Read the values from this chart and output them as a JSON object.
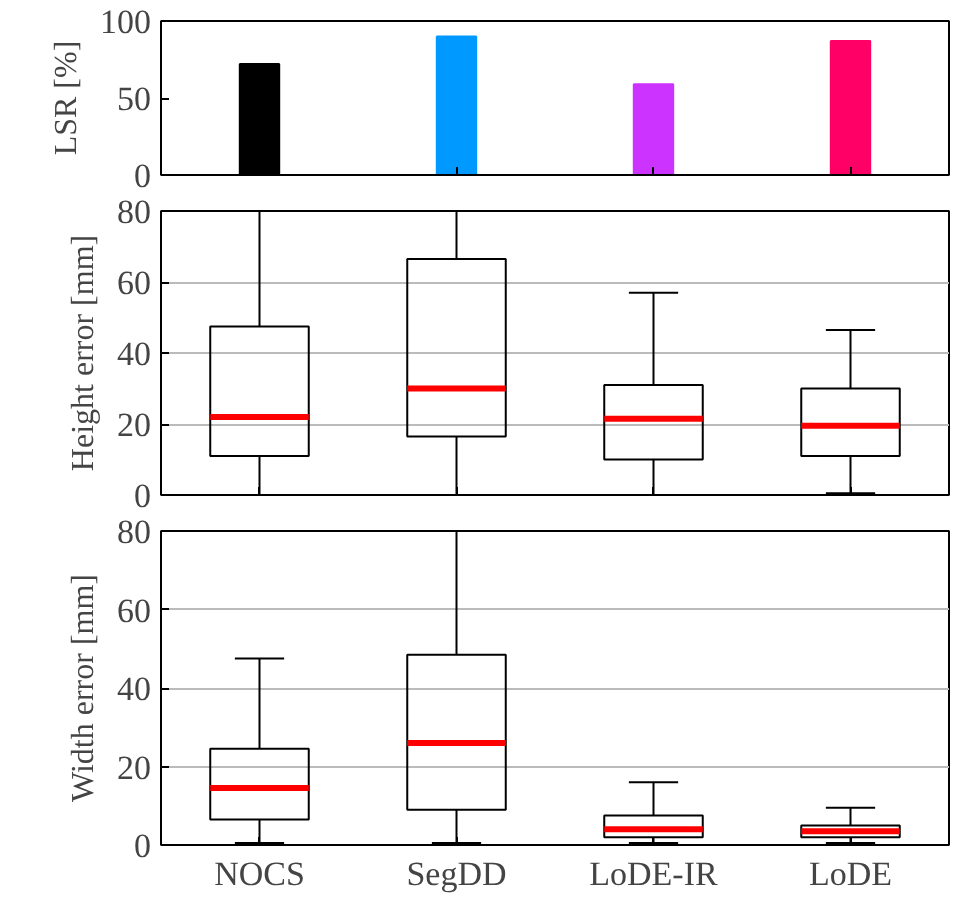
{
  "chart_data": [
    {
      "type": "bar",
      "ylabel": "LSR [%]",
      "categories": [
        null,
        null,
        null,
        null
      ],
      "values": [
        72,
        90,
        59,
        87
      ],
      "colors": [
        "#000000",
        "#0099ff",
        "#cc33ff",
        "#ff0066"
      ],
      "ylim": [
        0,
        100
      ],
      "yticks": [
        0,
        50,
        100
      ],
      "tick_labels": "y",
      "grid": false
    },
    {
      "type": "box",
      "ylabel": "Height error [mm]",
      "categories": [
        null,
        null,
        null,
        null
      ],
      "ylim": [
        0,
        80
      ],
      "yticks": [
        0,
        20,
        40,
        60,
        80
      ],
      "tick_labels": "y",
      "grid": "y",
      "series": [
        {
          "color": "#000000",
          "boxes": [
            {
              "low": 0,
              "q1": 11,
              "median": 22,
              "q3": 47.5,
              "high": 80
            },
            {
              "low": 0,
              "q1": 16.5,
              "median": 30,
              "q3": 66.5,
              "high": 80
            },
            {
              "low": 0,
              "q1": 10,
              "median": 21.5,
              "q3": 31,
              "high": 57
            },
            {
              "low": 0.5,
              "q1": 11,
              "median": 19.5,
              "q3": 30,
              "high": 46.5
            }
          ]
        }
      ]
    },
    {
      "type": "box",
      "ylabel": "Width error [mm]",
      "categories": [
        "NOCS",
        "SegDD",
        "LoDE-IR",
        "LoDE"
      ],
      "ylim": [
        0,
        80
      ],
      "yticks": [
        0,
        20,
        40,
        60,
        80
      ],
      "grid": "y",
      "series": [
        {
          "color": "#000000",
          "boxes": [
            {
              "low": 0.5,
              "q1": 6.5,
              "median": 14.5,
              "q3": 24.5,
              "high": 47.5
            },
            {
              "low": 0.5,
              "q1": 9,
              "median": 26,
              "q3": 48.5,
              "high": 80
            },
            {
              "low": 0.5,
              "q1": 2,
              "median": 4,
              "q3": 7.5,
              "high": 16
            },
            {
              "low": 0.5,
              "q1": 2,
              "median": 3.5,
              "q3": 5,
              "high": 9.5
            }
          ]
        }
      ]
    }
  ]
}
